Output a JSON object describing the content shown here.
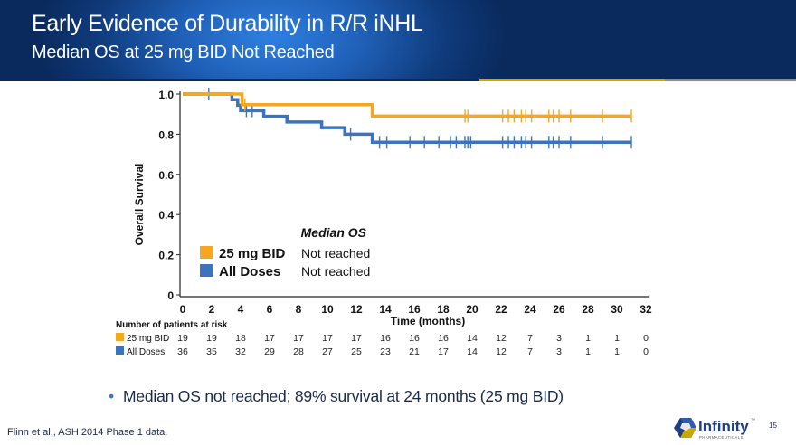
{
  "header": {
    "title": "Early Evidence of Durability in R/R iNHL",
    "subtitle": "Median OS at 25 mg BID Not Reached"
  },
  "colors": {
    "series_25mg": "#f5a623",
    "series_all": "#3a74c0",
    "header_bg": "#0f3a7a",
    "accent_gold": "#c8a800"
  },
  "chart_data": {
    "type": "line",
    "subtype": "kaplan-meier-step",
    "title": "",
    "xlabel": "Time (months)",
    "ylabel": "Overall Survival",
    "xlim": [
      0,
      32
    ],
    "ylim": [
      0,
      1.0
    ],
    "x_ticks": [
      "0",
      "2",
      "4",
      "6",
      "8",
      "10",
      "12",
      "14",
      "16",
      "18",
      "20",
      "22",
      "24",
      "26",
      "28",
      "30",
      "32"
    ],
    "y_ticks": [
      "0",
      "0.2",
      "0.4",
      "0.6",
      "0.8",
      "1.0"
    ],
    "grid": false,
    "series": [
      {
        "name": "25 mg BID",
        "color": "#f5a623",
        "steps": [
          [
            0,
            1.0
          ],
          [
            4.1,
            0.947
          ],
          [
            13.1,
            0.89
          ],
          [
            31.0,
            0.89
          ]
        ],
        "censor_times": [
          4.3,
          19.5,
          19.7,
          22.1,
          22.5,
          22.9,
          23.4,
          23.7,
          24.1,
          25.3,
          25.6,
          26.0,
          26.8,
          29.0,
          31.0
        ]
      },
      {
        "name": "All Doses",
        "color": "#3a74c0",
        "steps": [
          [
            0,
            1.0
          ],
          [
            3.4,
            0.972
          ],
          [
            3.8,
            0.944
          ],
          [
            4.0,
            0.917
          ],
          [
            5.6,
            0.889
          ],
          [
            7.2,
            0.861
          ],
          [
            9.6,
            0.833
          ],
          [
            11.2,
            0.8
          ],
          [
            13.1,
            0.76
          ],
          [
            31.0,
            0.76
          ]
        ],
        "censor_times": [
          1.8,
          4.4,
          4.8,
          11.6,
          13.6,
          14.1,
          15.7,
          16.7,
          17.7,
          18.5,
          18.9,
          19.5,
          19.7,
          19.9,
          22.1,
          22.5,
          22.9,
          23.4,
          23.7,
          24.1,
          25.3,
          25.6,
          26.0,
          26.8,
          29.0,
          31.0
        ]
      }
    ],
    "legend": {
      "placement": "bottom-left-inside",
      "header": "Median OS",
      "entries": [
        {
          "label": "25 mg BID",
          "value": "Not reached",
          "color": "#f5a623"
        },
        {
          "label": "All Doses",
          "value": "Not reached",
          "color": "#3a74c0"
        }
      ]
    },
    "risk_table": {
      "title": "Number of patients at risk",
      "timepoints": [
        0,
        2,
        4,
        6,
        8,
        10,
        12,
        14,
        16,
        18,
        20,
        22,
        24,
        26,
        28,
        30,
        32
      ],
      "rows": [
        {
          "label": "25 mg BID",
          "color": "#f5a623",
          "values": [
            19,
            19,
            18,
            17,
            17,
            17,
            17,
            16,
            16,
            16,
            14,
            12,
            7,
            3,
            1,
            1,
            0
          ]
        },
        {
          "label": "All Doses",
          "color": "#3a74c0",
          "values": [
            36,
            35,
            32,
            29,
            28,
            27,
            25,
            23,
            21,
            17,
            14,
            12,
            7,
            3,
            1,
            1,
            0
          ]
        }
      ]
    }
  },
  "bullet": "Median OS not reached; 89% survival at 24 months (25 mg BID)",
  "footnote": "Flinn et al., ASH 2014 Phase 1 data.",
  "logo": {
    "name": "Infinity",
    "tagline": "PHARMACEUTICALS",
    "tm": "™"
  },
  "page_number": "15"
}
